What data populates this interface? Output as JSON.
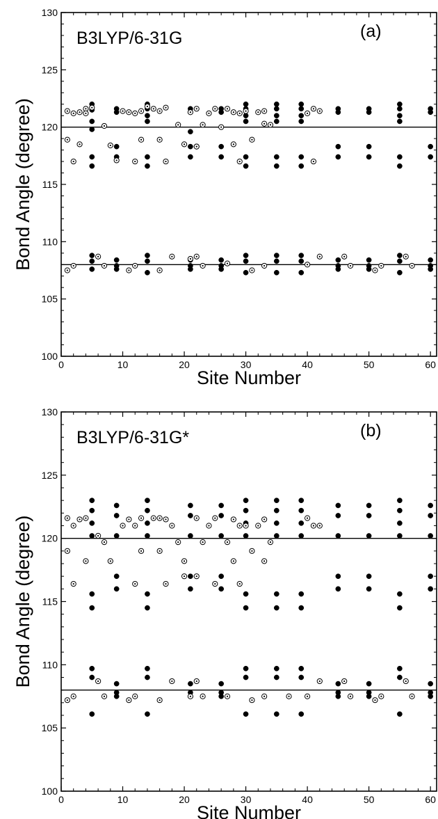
{
  "chart_data": [
    {
      "type": "scatter",
      "title": "B3LYP/6-31G",
      "label": "(a)",
      "xlabel": "Site Number",
      "ylabel": "Bond Angle (degree)",
      "xlim": [
        0,
        61
      ],
      "ylim": [
        100,
        130
      ],
      "xticks": [
        0,
        10,
        20,
        30,
        40,
        50,
        60
      ],
      "yticks": [
        100,
        105,
        110,
        115,
        120,
        125,
        130
      ],
      "reference_lines": [
        120,
        108
      ],
      "grid": false,
      "series": [
        {
          "marker": "filled",
          "x": [
            5,
            5,
            5,
            5,
            5,
            5,
            9,
            9,
            9,
            9,
            14,
            14,
            14,
            14,
            14,
            14,
            21,
            21,
            21,
            21,
            21,
            26,
            26,
            26,
            26,
            30,
            30,
            30,
            30,
            30,
            30,
            35,
            35,
            35,
            35,
            35,
            35,
            39,
            39,
            39,
            39,
            39,
            39,
            45,
            45,
            45,
            45,
            50,
            50,
            50,
            50,
            55,
            55,
            55,
            55,
            55,
            55,
            60,
            60,
            60,
            60,
            5,
            5,
            5,
            9,
            9,
            9,
            14,
            14,
            14,
            21,
            21,
            21,
            26,
            26,
            26,
            30,
            30,
            30,
            35,
            35,
            35,
            39,
            39,
            39,
            45,
            45,
            45,
            50,
            50,
            50,
            55,
            55,
            55,
            60,
            60,
            60
          ],
          "y": [
            122.0,
            121.5,
            120.5,
            119.8,
            117.4,
            116.6,
            121.6,
            121.3,
            118.3,
            117.4,
            122.0,
            121.6,
            121.0,
            120.5,
            117.4,
            116.6,
            121.6,
            121.3,
            119.6,
            118.3,
            117.4,
            121.6,
            121.3,
            118.3,
            117.4,
            122.0,
            121.6,
            121.0,
            120.5,
            117.4,
            116.6,
            122.0,
            121.6,
            121.0,
            120.5,
            117.4,
            116.6,
            122.0,
            121.6,
            121.0,
            120.5,
            117.4,
            116.6,
            121.6,
            121.3,
            118.3,
            117.4,
            121.6,
            121.3,
            118.3,
            117.4,
            122.0,
            121.6,
            121.0,
            120.5,
            117.4,
            116.6,
            121.6,
            121.3,
            118.3,
            117.4,
            108.8,
            108.3,
            107.6,
            108.4,
            107.9,
            107.6,
            108.8,
            108.3,
            107.3,
            108.4,
            107.9,
            107.6,
            108.4,
            107.9,
            107.6,
            108.8,
            108.3,
            107.3,
            108.8,
            108.3,
            107.3,
            108.8,
            108.3,
            107.3,
            108.4,
            107.9,
            107.6,
            108.4,
            107.9,
            107.6,
            108.8,
            108.3,
            107.3,
            108.4,
            107.9,
            107.6
          ]
        },
        {
          "marker": "open",
          "x": [
            1,
            2,
            3,
            4,
            5,
            10,
            11,
            12,
            13,
            14,
            15,
            16,
            17,
            21,
            22,
            24,
            25,
            27,
            28,
            29,
            30,
            32,
            33,
            40,
            41,
            42,
            1,
            3,
            8,
            13,
            16,
            22,
            28,
            31,
            2,
            9,
            12,
            17,
            20,
            22,
            29,
            41,
            4,
            7,
            19,
            23,
            26,
            33,
            34,
            1,
            2,
            6,
            7,
            11,
            12,
            16,
            18,
            21,
            22,
            23,
            27,
            31,
            33,
            40,
            42,
            46,
            47,
            51,
            52,
            56,
            57
          ],
          "y": [
            121.4,
            121.2,
            121.3,
            121.6,
            121.7,
            121.4,
            121.3,
            121.2,
            121.4,
            121.8,
            121.6,
            121.4,
            121.7,
            121.3,
            121.6,
            121.2,
            121.6,
            121.6,
            121.3,
            121.2,
            121.4,
            121.3,
            121.4,
            121.2,
            121.6,
            121.4,
            118.9,
            118.5,
            118.4,
            118.9,
            118.9,
            118.3,
            118.5,
            118.9,
            117.0,
            117.1,
            117.0,
            117.0,
            118.5,
            118.3,
            117.0,
            117.0,
            121.2,
            120.1,
            120.2,
            120.2,
            120.0,
            120.3,
            120.2,
            107.5,
            107.9,
            108.7,
            107.9,
            107.5,
            107.9,
            107.5,
            108.7,
            108.5,
            108.7,
            107.9,
            108.1,
            107.5,
            107.9,
            108.0,
            108.7,
            108.7,
            107.9,
            107.5,
            107.9,
            108.7,
            107.9
          ]
        }
      ]
    },
    {
      "type": "scatter",
      "title": "B3LYP/6-31G*",
      "label": "(b)",
      "xlabel": "Site Number",
      "ylabel": "Bond Angle (degree)",
      "xlim": [
        0,
        61
      ],
      "ylim": [
        100,
        130
      ],
      "xticks": [
        0,
        10,
        20,
        30,
        40,
        50,
        60
      ],
      "yticks": [
        100,
        105,
        110,
        115,
        120,
        125,
        130
      ],
      "reference_lines": [
        120,
        108
      ],
      "grid": false,
      "series": [
        {
          "marker": "filled",
          "x": [
            5,
            5,
            5,
            5,
            5,
            5,
            9,
            9,
            9,
            9,
            9,
            14,
            14,
            14,
            14,
            14,
            14,
            21,
            21,
            21,
            21,
            21,
            26,
            26,
            26,
            26,
            26,
            30,
            30,
            30,
            30,
            30,
            30,
            35,
            35,
            35,
            35,
            35,
            35,
            39,
            39,
            39,
            39,
            39,
            39,
            45,
            45,
            45,
            45,
            45,
            50,
            50,
            50,
            50,
            50,
            55,
            55,
            55,
            55,
            55,
            55,
            60,
            60,
            60,
            60,
            60,
            5,
            5,
            5,
            9,
            9,
            9,
            14,
            14,
            14,
            21,
            21,
            21,
            26,
            26,
            26,
            30,
            30,
            30,
            35,
            35,
            35,
            39,
            39,
            39,
            45,
            45,
            45,
            50,
            50,
            50,
            55,
            55,
            55,
            60,
            60,
            60
          ],
          "y": [
            123.0,
            122.2,
            121.2,
            120.2,
            115.6,
            114.5,
            122.6,
            121.8,
            120.2,
            117.0,
            116.0,
            123.0,
            122.2,
            121.2,
            120.2,
            115.6,
            114.5,
            122.6,
            121.8,
            120.2,
            117.0,
            116.0,
            122.6,
            121.8,
            120.2,
            117.0,
            116.0,
            123.0,
            122.2,
            121.2,
            120.2,
            115.6,
            114.5,
            123.0,
            122.2,
            121.2,
            120.2,
            115.6,
            114.5,
            123.0,
            122.2,
            121.2,
            120.2,
            115.6,
            114.5,
            122.6,
            121.8,
            120.2,
            117.0,
            116.0,
            122.6,
            121.8,
            120.2,
            117.0,
            116.0,
            123.0,
            122.2,
            121.2,
            120.2,
            115.6,
            114.5,
            122.6,
            121.8,
            120.2,
            117.0,
            116.0,
            109.7,
            109.0,
            106.1,
            108.5,
            107.8,
            107.5,
            109.7,
            109.0,
            106.1,
            108.5,
            107.8,
            107.5,
            108.5,
            107.8,
            107.5,
            109.7,
            109.0,
            106.1,
            109.7,
            109.0,
            106.1,
            109.7,
            109.0,
            106.1,
            108.5,
            107.8,
            107.5,
            108.5,
            107.8,
            107.5,
            109.7,
            109.0,
            106.1,
            108.5,
            107.8,
            107.5
          ]
        },
        {
          "marker": "open",
          "x": [
            1,
            2,
            3,
            4,
            10,
            11,
            12,
            13,
            15,
            16,
            17,
            18,
            22,
            24,
            25,
            28,
            29,
            30,
            32,
            33,
            40,
            41,
            42,
            1,
            4,
            6,
            7,
            8,
            13,
            16,
            19,
            20,
            23,
            27,
            28,
            31,
            33,
            34,
            2,
            12,
            17,
            20,
            22,
            25,
            29,
            1,
            2,
            6,
            7,
            11,
            12,
            16,
            18,
            21,
            22,
            23,
            27,
            31,
            33,
            37,
            40,
            42,
            46,
            47,
            51,
            52,
            56,
            57
          ],
          "y": [
            121.6,
            121.0,
            121.5,
            121.6,
            121.0,
            121.5,
            121.0,
            121.6,
            121.6,
            121.6,
            121.5,
            121.0,
            121.6,
            121.0,
            121.6,
            121.5,
            121.0,
            121.0,
            121.0,
            121.5,
            121.6,
            121.0,
            121.0,
            119.0,
            118.2,
            120.2,
            119.7,
            118.2,
            119.0,
            119.0,
            119.7,
            118.2,
            119.7,
            119.7,
            118.2,
            119.0,
            118.2,
            119.7,
            116.4,
            116.4,
            116.4,
            117.0,
            117.0,
            116.4,
            116.4,
            107.2,
            107.5,
            108.7,
            107.5,
            107.2,
            107.5,
            107.2,
            108.7,
            107.5,
            108.7,
            107.5,
            107.5,
            107.2,
            107.5,
            107.5,
            107.5,
            108.7,
            108.7,
            107.5,
            107.2,
            107.5,
            108.7,
            107.5
          ]
        }
      ]
    }
  ]
}
